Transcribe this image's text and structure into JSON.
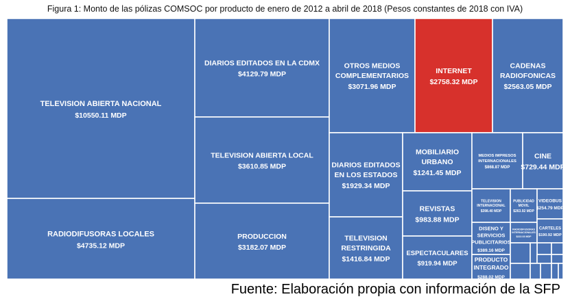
{
  "title": "Figura 1: Monto de las pólizas COMSOC por producto de enero de 2012 a abril de 2018 (Pesos constantes de 2018 con IVA)",
  "source": "Fuente: Elaboración propia con información de la SFP",
  "chart_data": {
    "type": "treemap",
    "unit": "MDP",
    "colors": {
      "default": "#4a73b5",
      "highlight": "#d7312c",
      "border": "#ffffff"
    },
    "items": [
      {
        "name": "TELEVISION ABIERTA NACIONAL",
        "value": 10550.11,
        "label": "$10550.11 MDP"
      },
      {
        "name": "RADIODIFUSORAS LOCALES",
        "value": 4735.12,
        "label": "$4735.12 MDP"
      },
      {
        "name": "DIARIOS EDITADOS EN LA CDMX",
        "value": 4129.79,
        "label": "$4129.79 MDP"
      },
      {
        "name": "TELEVISION ABIERTA LOCAL",
        "value": 3610.85,
        "label": "$3610.85 MDP"
      },
      {
        "name": "PRODUCCION",
        "value": 3182.07,
        "label": "$3182.07 MDP"
      },
      {
        "name": "OTROS MEDIOS COMPLEMENTARIOS",
        "value": 3071.96,
        "label": "$3071.96 MDP"
      },
      {
        "name": "INTERNET",
        "value": 2758.32,
        "label": "$2758.32 MDP",
        "highlight": true
      },
      {
        "name": "CADENAS RADIOFONICAS",
        "value": 2563.05,
        "label": "$2563.05 MDP"
      },
      {
        "name": "DIARIOS EDITADOS EN LOS ESTADOS",
        "value": 1929.34,
        "label": "$1929.34 MDP"
      },
      {
        "name": "TELEVISION RESTRINGIDA",
        "value": 1416.84,
        "label": "$1416.84 MDP"
      },
      {
        "name": "MOBILIARIO URBANO",
        "value": 1241.45,
        "label": "$1241.45 MDP"
      },
      {
        "name": "REVISTAS",
        "value": 983.88,
        "label": "$983.88 MDP"
      },
      {
        "name": "ESPECTACULARES",
        "value": 919.94,
        "label": "$919.94 MDP"
      },
      {
        "name": "MEDIOS IMPRESOS INTERNACIONALES",
        "value": 868.87,
        "label": "$868.87 MDP"
      },
      {
        "name": "CINE",
        "value": 729.44,
        "label": "$729.44 MDP"
      },
      {
        "name": "TELEVISION INTERNACIONAL",
        "value": 398.4,
        "label": "$398.40 MDP"
      },
      {
        "name": "DISENO Y SERVICIOS PUBLICITARIOS",
        "value": 389.16,
        "label": "$389.16 MDP"
      },
      {
        "name": "PRODUCTO INTEGRADO",
        "value": 288.02,
        "label": "$288.02 MDP"
      },
      {
        "name": "PUBLICIDAD MOVIL",
        "value": 263.92,
        "label": "$263.92 MDP"
      },
      {
        "name": "VIDEOBUS",
        "value": 254.79,
        "label": "$254.79 MDP"
      },
      {
        "name": "RADIODIFUSORAS INTERNACIONALES",
        "value": 222.03,
        "label": "$222.03 MDP"
      },
      {
        "name": "CARTELES",
        "value": 190.92,
        "label": "$190.92 MDP"
      }
    ]
  }
}
